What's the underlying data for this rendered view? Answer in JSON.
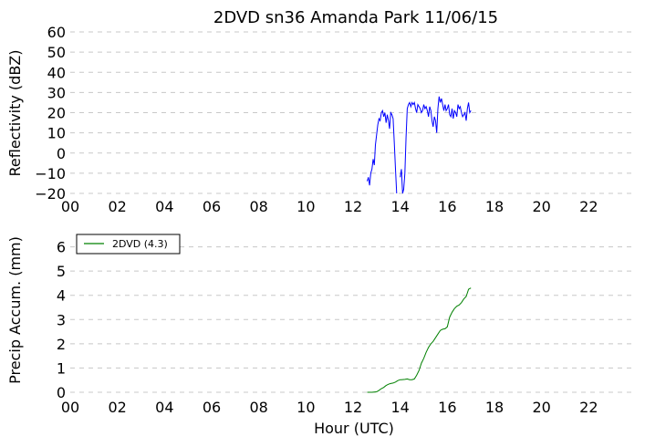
{
  "chart_data": [
    {
      "type": "line",
      "title": "2DVD sn36 Amanda Park 11/06/15",
      "xlabel": "",
      "ylabel": "Reflectivity (dBZ)",
      "xlim": [
        0,
        24
      ],
      "ylim": [
        -20,
        60
      ],
      "grid": "horizontal dashed",
      "xticks": [
        "00",
        "02",
        "04",
        "06",
        "08",
        "10",
        "12",
        "14",
        "16",
        "18",
        "20",
        "22"
      ],
      "yticks": [
        "60",
        "50",
        "40",
        "30",
        "20",
        "10",
        "0",
        "−10",
        "−20"
      ],
      "series": [
        {
          "color": "#0000ff",
          "x": [
            12.6,
            12.65,
            12.7,
            12.75,
            12.8,
            12.85,
            12.9,
            12.95,
            13.0,
            13.05,
            13.1,
            13.15,
            13.2,
            13.25,
            13.3,
            13.35,
            13.4,
            13.45,
            13.5,
            13.55,
            13.6,
            13.65,
            13.7,
            13.75,
            13.8,
            13.85,
            13.9,
            13.95,
            14.0,
            14.05,
            14.1,
            14.15,
            14.2,
            14.25,
            14.3,
            14.35,
            14.4,
            14.45,
            14.5,
            14.55,
            14.6,
            14.65,
            14.7,
            14.75,
            14.8,
            14.85,
            14.9,
            14.95,
            15.0,
            15.05,
            15.1,
            15.15,
            15.2,
            15.25,
            15.3,
            15.35,
            15.4,
            15.45,
            15.5,
            15.55,
            15.6,
            15.65,
            15.7,
            15.75,
            15.8,
            15.85,
            15.9,
            15.95,
            16.0,
            16.05,
            16.1,
            16.15,
            16.2,
            16.25,
            16.3,
            16.35,
            16.4,
            16.45,
            16.5,
            16.55,
            16.6,
            16.65,
            16.7,
            16.75,
            16.8,
            16.85,
            16.9,
            16.95,
            17.0
          ],
          "y": [
            -14,
            -12,
            -16,
            -10,
            -8,
            -3,
            -6,
            4,
            9,
            14,
            17,
            16,
            20,
            21,
            18,
            20,
            15,
            19,
            16,
            12,
            20,
            19,
            17,
            5,
            -8,
            -21,
            null,
            null,
            -12,
            -8,
            -20,
            -18,
            -10,
            8,
            22,
            24,
            25,
            23,
            25,
            24,
            25,
            22,
            20,
            24,
            23,
            22,
            20,
            21,
            24,
            22,
            23,
            21,
            18,
            23,
            21,
            16,
            13,
            18,
            16,
            10,
            22,
            28,
            25,
            27,
            24,
            21,
            24,
            21,
            22,
            24,
            19,
            18,
            22,
            17,
            21,
            20,
            18,
            24,
            22,
            23,
            20,
            18,
            19,
            20,
            16,
            22,
            25,
            20,
            21
          ]
        }
      ]
    },
    {
      "type": "line",
      "title": "",
      "xlabel": "Hour (UTC)",
      "ylabel": "Precip Accum. (mm)",
      "xlim": [
        0,
        24
      ],
      "ylim": [
        0,
        7
      ],
      "grid": "horizontal dashed",
      "legend": "top-left",
      "xticks": [
        "00",
        "02",
        "04",
        "06",
        "08",
        "10",
        "12",
        "14",
        "16",
        "18",
        "20",
        "22"
      ],
      "yticks": [
        "6",
        "5",
        "4",
        "3",
        "2",
        "1",
        "0"
      ],
      "series": [
        {
          "name": "2DVD (4.3)",
          "color": "#008000",
          "x": [
            12.6,
            12.8,
            13.0,
            13.1,
            13.2,
            13.3,
            13.4,
            13.5,
            13.6,
            13.7,
            13.8,
            13.9,
            14.0,
            14.05,
            14.2,
            14.3,
            14.4,
            14.5,
            14.6,
            14.7,
            14.8,
            14.9,
            15.0,
            15.1,
            15.2,
            15.3,
            15.4,
            15.5,
            15.6,
            15.7,
            15.8,
            15.9,
            16.0,
            16.1,
            16.2,
            16.3,
            16.4,
            16.5,
            16.6,
            16.7,
            16.8,
            16.9,
            17.0
          ],
          "y": [
            0,
            0,
            0.02,
            0.08,
            0.15,
            0.2,
            0.28,
            0.33,
            0.36,
            0.38,
            0.42,
            0.48,
            0.52,
            0.52,
            0.53,
            0.55,
            0.52,
            0.52,
            0.55,
            0.7,
            0.9,
            1.2,
            1.4,
            1.65,
            1.85,
            2.0,
            2.1,
            2.25,
            2.4,
            2.55,
            2.6,
            2.62,
            2.7,
            3.1,
            3.3,
            3.45,
            3.55,
            3.6,
            3.7,
            3.85,
            3.95,
            4.25,
            4.3
          ]
        }
      ]
    }
  ]
}
